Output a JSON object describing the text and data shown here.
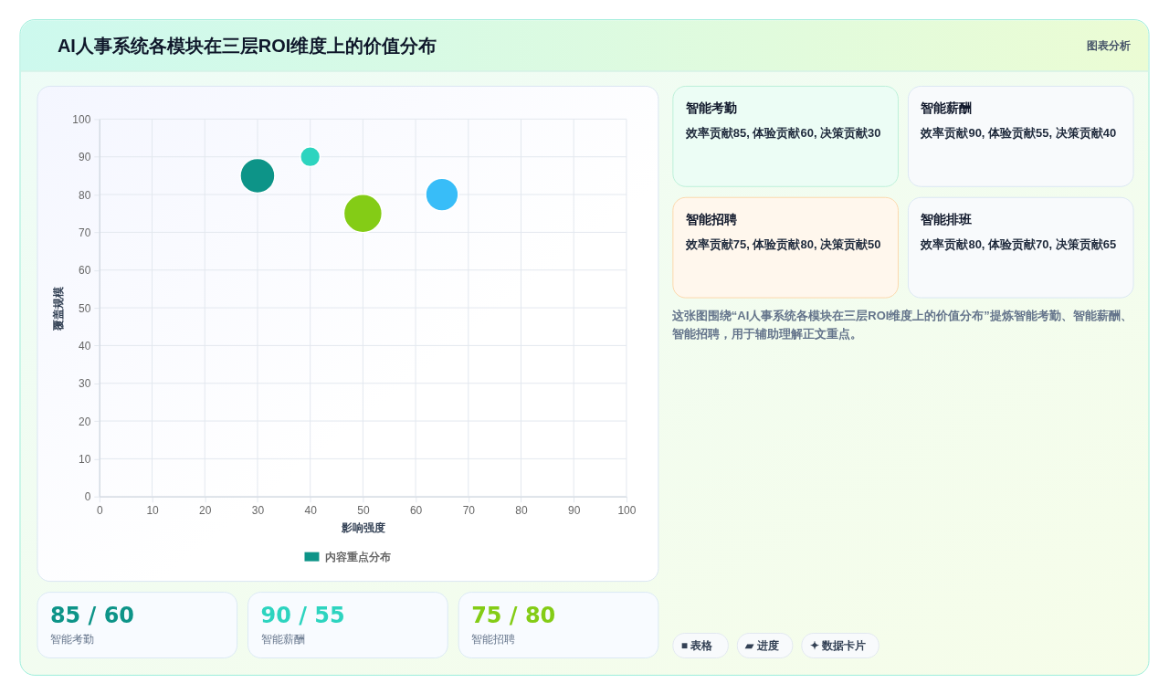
{
  "chart_data": [
    {
      "type": "bubble",
      "title": "AI人事系统各模块在三层ROI维度上的价值分布",
      "xlabel": "影响强度",
      "ylabel": "覆盖规模",
      "x": [
        30,
        40,
        50,
        65
      ],
      "series": [
        {
          "name": "内容重点分布",
          "colors": [
            "#0d9488",
            "#2dd4bf",
            "#84cc16",
            "#38bdf8"
          ],
          "values": [
            85,
            90,
            75,
            80
          ],
          "sizes": [
            0.82,
            0.27,
            1,
            0.73
          ]
        }
      ],
      "xlim": [
        0,
        100
      ],
      "ylim": [
        0,
        100
      ],
      "xticks": [
        0,
        10,
        20,
        30,
        40,
        50,
        60,
        70,
        80,
        90,
        100
      ],
      "yticks": [
        0,
        10,
        20,
        30,
        40,
        50,
        60,
        70,
        80,
        90,
        100
      ],
      "grid": true,
      "legend": "bottom"
    },
    {
      "type": "other",
      "title": "图表分析",
      "categories": [
        "智能考勤",
        "智能薪酬",
        "智能招聘",
        "智能排班"
      ],
      "annotations": [
        "效率贡献85, 体验贡献60, 决策贡献30",
        "效率贡献90, 体验贡献55, 决策贡献40",
        "效率贡献75, 体验贡献80, 决策贡献50",
        "效率贡献80, 体验贡献70, 决策贡献65",
        "这张图围绕“AI人事系统各模块在三层ROI维度上的价值分布”提炼智能考勤、智能薪酬、智能招聘，用于辅助理解正文重点。",
        "■ 表格",
        "▰ 进度",
        "✦ 数据卡片"
      ]
    },
    {
      "type": "other",
      "categories": [
        "智能考勤",
        "智能薪酬",
        "智能招聘"
      ],
      "annotations": [
        "85 / 60",
        "90 / 55",
        "75 / 80"
      ]
    }
  ]
}
